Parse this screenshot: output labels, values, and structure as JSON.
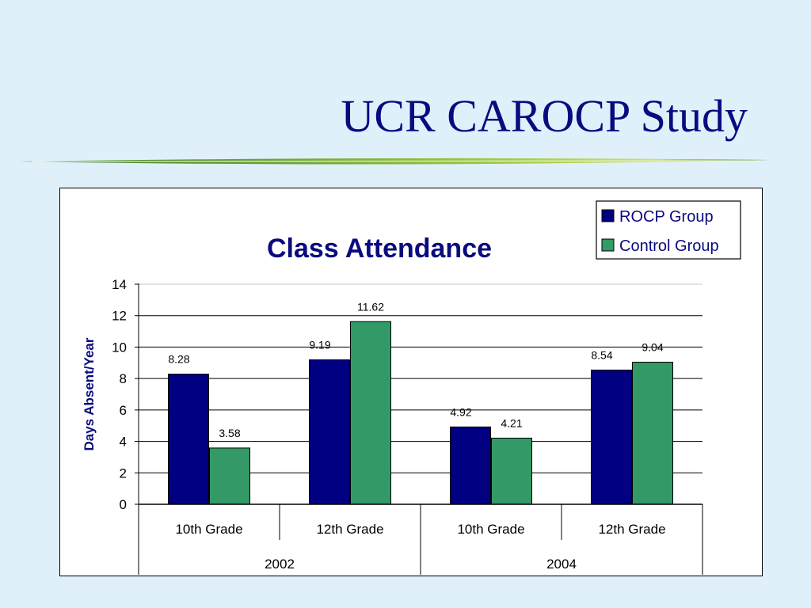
{
  "slide": {
    "title": "UCR CAROCP Study"
  },
  "colors": {
    "background": "#dff0fb",
    "title": "#0a0a80",
    "rocp": "#000080",
    "control": "#339966"
  },
  "chart_data": {
    "type": "bar",
    "title": "Class Attendance",
    "xlabel": "",
    "ylabel": "Days Absent/Year",
    "ylim": [
      0,
      14
    ],
    "yticks": [
      "0",
      "2",
      "4",
      "6",
      "8",
      "10",
      "12",
      "14"
    ],
    "categories": [
      "10th Grade",
      "12th Grade",
      "10th Grade",
      "12th Grade"
    ],
    "groups": [
      {
        "label": "2002",
        "span": 2
      },
      {
        "label": "2004",
        "span": 2
      }
    ],
    "series": [
      {
        "name": "ROCP Group",
        "color": "#000080",
        "values": [
          8.28,
          9.19,
          4.92,
          8.54
        ]
      },
      {
        "name": "Control Group",
        "color": "#339966",
        "values": [
          3.58,
          11.62,
          4.21,
          9.04
        ]
      }
    ],
    "data_labels": [
      [
        "8.28",
        "9.19",
        "4.92",
        "8.54"
      ],
      [
        "3.58",
        "11.62",
        "4.21",
        "9.04"
      ]
    ],
    "grid": true,
    "legend": "top-right"
  }
}
